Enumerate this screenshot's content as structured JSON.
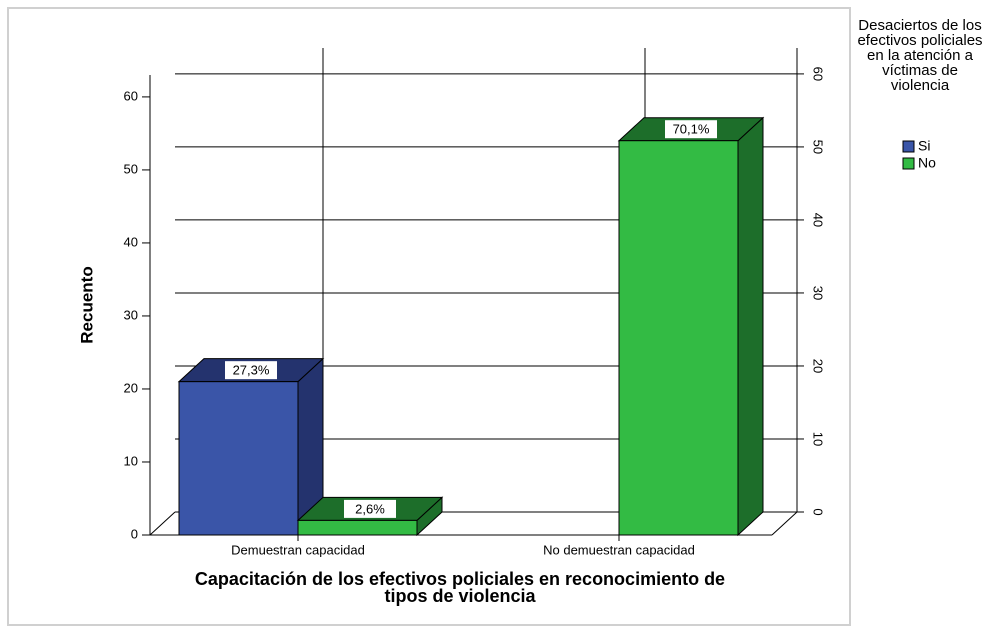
{
  "chart_data": {
    "type": "bar3d",
    "x_label": "Capacitación de los efectivos policiales en reconocimiento de tipos de violencia",
    "y_label": "Recuento",
    "categories": [
      "Demuestran capacidad",
      "No demuestran capacidad"
    ],
    "series": [
      {
        "name": "Si",
        "color": "#3a55a8",
        "side": "#24336e",
        "values": [
          21,
          null
        ],
        "value_labels": [
          "27,3%",
          null
        ]
      },
      {
        "name": "No",
        "color": "#33bb44",
        "side": "#1d6e2a",
        "values": [
          2,
          54
        ],
        "value_labels": [
          "2,6%",
          "70,1%"
        ]
      }
    ],
    "legend_title": "Desaciertos de los efectivos policiales en la atención a víctimas de violencia",
    "ylim": [
      0,
      63
    ],
    "yticks": [
      0,
      10,
      20,
      30,
      40,
      50,
      60
    ],
    "grid": true
  }
}
